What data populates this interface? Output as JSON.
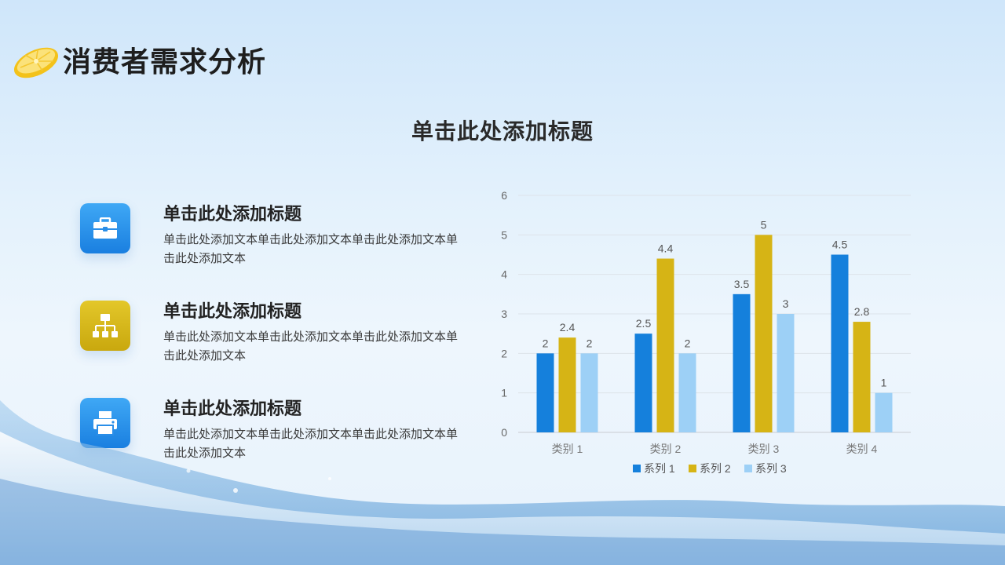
{
  "header": {
    "title": "消费者需求分析"
  },
  "section": {
    "title": "单击此处添加标题"
  },
  "items": [
    {
      "title": "单击此处添加标题",
      "text": "单击此处添加文本单击此处添加文本单击此处添加文本单击此处添加文本",
      "icon": "toolbox-icon",
      "color": "#1f86e8"
    },
    {
      "title": "单击此处添加标题",
      "text": "单击此处添加文本单击此处添加文本单击此处添加文本单击此处添加文本",
      "icon": "hierarchy-icon",
      "color": "#d4b51a"
    },
    {
      "title": "单击此处添加标题",
      "text": "单击此处添加文本单击此处添加文本单击此处添加文本单击此处添加文本",
      "icon": "printer-icon",
      "color": "#1f86e8"
    }
  ],
  "chart_data": {
    "type": "bar",
    "categories": [
      "类别 1",
      "类别 2",
      "类别 3",
      "类别 4"
    ],
    "series": [
      {
        "name": "系列 1",
        "values": [
          2,
          2.5,
          3.5,
          4.5
        ],
        "color": "#1580dc"
      },
      {
        "name": "系列 2",
        "values": [
          2.4,
          4.4,
          5,
          2.8
        ],
        "color": "#d6b415"
      },
      {
        "name": "系列 3",
        "values": [
          2,
          2,
          3,
          1
        ],
        "color": "#9dd0f6"
      }
    ],
    "ylim": [
      0,
      6
    ],
    "yticks": [
      "0",
      "1",
      "2",
      "3",
      "4",
      "5",
      "6"
    ],
    "grid": true,
    "legend": "bottom"
  }
}
